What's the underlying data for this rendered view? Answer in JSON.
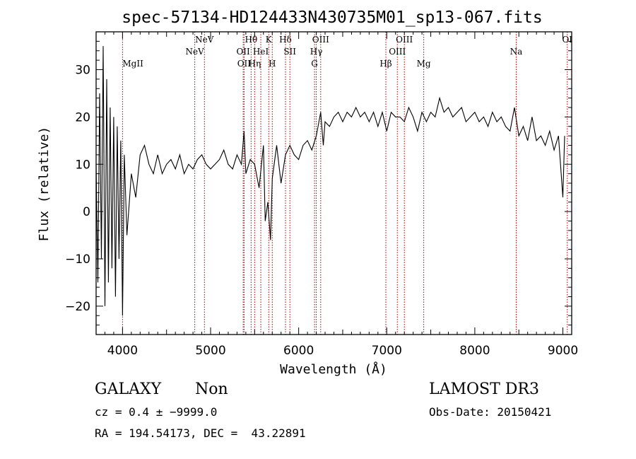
{
  "chart_data": {
    "type": "line",
    "title": "spec-57134-HD124433N430735M01_sp13-067.fits",
    "xlabel": "Wavelength (Å)",
    "ylabel": "Flux (relative)",
    "xlim": [
      3700,
      9100
    ],
    "ylim": [
      -26,
      38
    ],
    "xticks": [
      {
        "value": 4000,
        "label": "4000"
      },
      {
        "value": 5000,
        "label": "5000"
      },
      {
        "value": 6000,
        "label": "6000"
      },
      {
        "value": 7000,
        "label": "7000"
      },
      {
        "value": 8000,
        "label": "8000"
      },
      {
        "value": 9000,
        "label": "9000"
      }
    ],
    "yticks": [
      {
        "value": -20,
        "label": "−20"
      },
      {
        "value": -10,
        "label": "−10"
      },
      {
        "value": 0,
        "label": "0"
      },
      {
        "value": 10,
        "label": "10"
      },
      {
        "value": 20,
        "label": "20"
      },
      {
        "value": 30,
        "label": "30"
      }
    ],
    "grid": false,
    "line_color": "#000000",
    "marker_color": "#aa0000",
    "spectrum": {
      "x": [
        3700,
        3720,
        3740,
        3760,
        3780,
        3800,
        3820,
        3840,
        3860,
        3880,
        3900,
        3920,
        3940,
        3960,
        3980,
        4000,
        4020,
        4050,
        4100,
        4150,
        4200,
        4250,
        4300,
        4350,
        4400,
        4450,
        4500,
        4550,
        4600,
        4650,
        4700,
        4750,
        4800,
        4850,
        4900,
        4950,
        5000,
        5050,
        5100,
        5150,
        5200,
        5250,
        5300,
        5350,
        5380,
        5400,
        5450,
        5500,
        5550,
        5600,
        5620,
        5650,
        5680,
        5700,
        5750,
        5800,
        5850,
        5900,
        5950,
        6000,
        6050,
        6100,
        6150,
        6200,
        6250,
        6280,
        6300,
        6350,
        6400,
        6450,
        6500,
        6550,
        6600,
        6650,
        6700,
        6750,
        6800,
        6850,
        6900,
        6950,
        7000,
        7050,
        7100,
        7150,
        7200,
        7250,
        7300,
        7350,
        7400,
        7450,
        7500,
        7550,
        7600,
        7650,
        7700,
        7750,
        7800,
        7850,
        7900,
        7950,
        8000,
        8050,
        8100,
        8150,
        8200,
        8250,
        8300,
        8350,
        8400,
        8450,
        8500,
        8550,
        8600,
        8650,
        8700,
        8750,
        8800,
        8850,
        8900,
        8950,
        9000,
        9020
      ],
      "y": [
        10,
        -15,
        25,
        -10,
        35,
        -20,
        28,
        -15,
        22,
        -12,
        20,
        -18,
        18,
        -10,
        15,
        -22,
        12,
        -5,
        8,
        3,
        12,
        14,
        10,
        8,
        12,
        8,
        10,
        11,
        9,
        12,
        8,
        10,
        9,
        11,
        12,
        10,
        9,
        10,
        11,
        13,
        10,
        9,
        12,
        10,
        17,
        8,
        11,
        10,
        5,
        14,
        -2,
        2,
        -6,
        7,
        14,
        6,
        12,
        14,
        12,
        11,
        14,
        15,
        13,
        16,
        21,
        14,
        19,
        18,
        20,
        21,
        19,
        21,
        20,
        22,
        20,
        21,
        19,
        21,
        18,
        21,
        17,
        21,
        20,
        20,
        19,
        22,
        20,
        17,
        21,
        19,
        21,
        20,
        24,
        21,
        22,
        20,
        21,
        22,
        19,
        20,
        21,
        19,
        20,
        18,
        21,
        19,
        20,
        18,
        17,
        22,
        16,
        18,
        15,
        20,
        15,
        16,
        14,
        17,
        13,
        16,
        3,
        16
      ]
    },
    "lines": [
      {
        "label": "MgII",
        "x": 4000,
        "label_row": 3,
        "anchor": "start"
      },
      {
        "label": "NeV",
        "x": 4820,
        "label_row": 2,
        "anchor": "middle"
      },
      {
        "label": "NeV",
        "x": 4930,
        "label_row": 1,
        "anchor": "middle"
      },
      {
        "label": "OII",
        "x": 5370,
        "label_row": 2,
        "anchor": "middle"
      },
      {
        "label": "OII",
        "x": 5380,
        "label_row": 3,
        "anchor": "middle"
      },
      {
        "label": "Hθ",
        "x": 5460,
        "label_row": 1,
        "anchor": "middle"
      },
      {
        "label": "Hη",
        "x": 5500,
        "label_row": 3,
        "anchor": "middle"
      },
      {
        "label": "HeI",
        "x": 5570,
        "label_row": 2,
        "anchor": "middle"
      },
      {
        "label": "K",
        "x": 5660,
        "label_row": 1,
        "anchor": "middle"
      },
      {
        "label": "H",
        "x": 5700,
        "label_row": 3,
        "anchor": "middle"
      },
      {
        "label": "Hδ",
        "x": 5850,
        "label_row": 1,
        "anchor": "middle"
      },
      {
        "label": "SII",
        "x": 5900,
        "label_row": 2,
        "anchor": "middle"
      },
      {
        "label": "G",
        "x": 6180,
        "label_row": 3,
        "anchor": "middle"
      },
      {
        "label": "Hγ",
        "x": 6200,
        "label_row": 2,
        "anchor": "middle"
      },
      {
        "label": "OIII",
        "x": 6250,
        "label_row": 1,
        "anchor": "middle"
      },
      {
        "label": "Hβ",
        "x": 6990,
        "label_row": 3,
        "anchor": "middle"
      },
      {
        "label": "OIII",
        "x": 7120,
        "label_row": 2,
        "anchor": "middle"
      },
      {
        "label": "OIII",
        "x": 7200,
        "label_row": 1,
        "anchor": "middle"
      },
      {
        "label": "Mg",
        "x": 7420,
        "label_row": 3,
        "anchor": "middle"
      },
      {
        "label": "Na",
        "x": 8470,
        "label_row": 2,
        "anchor": "middle"
      },
      {
        "label": "OI",
        "x": 9050,
        "label_row": 1,
        "anchor": "middle"
      }
    ]
  },
  "info": {
    "object_class": "GALAXY",
    "subclass": "Non",
    "survey": "LAMOST DR3",
    "cz": "cz = 0.4 ± −9999.0",
    "obs_date": "Obs-Date: 20150421",
    "coords": "RA = 194.54173, DEC =  43.22891"
  }
}
